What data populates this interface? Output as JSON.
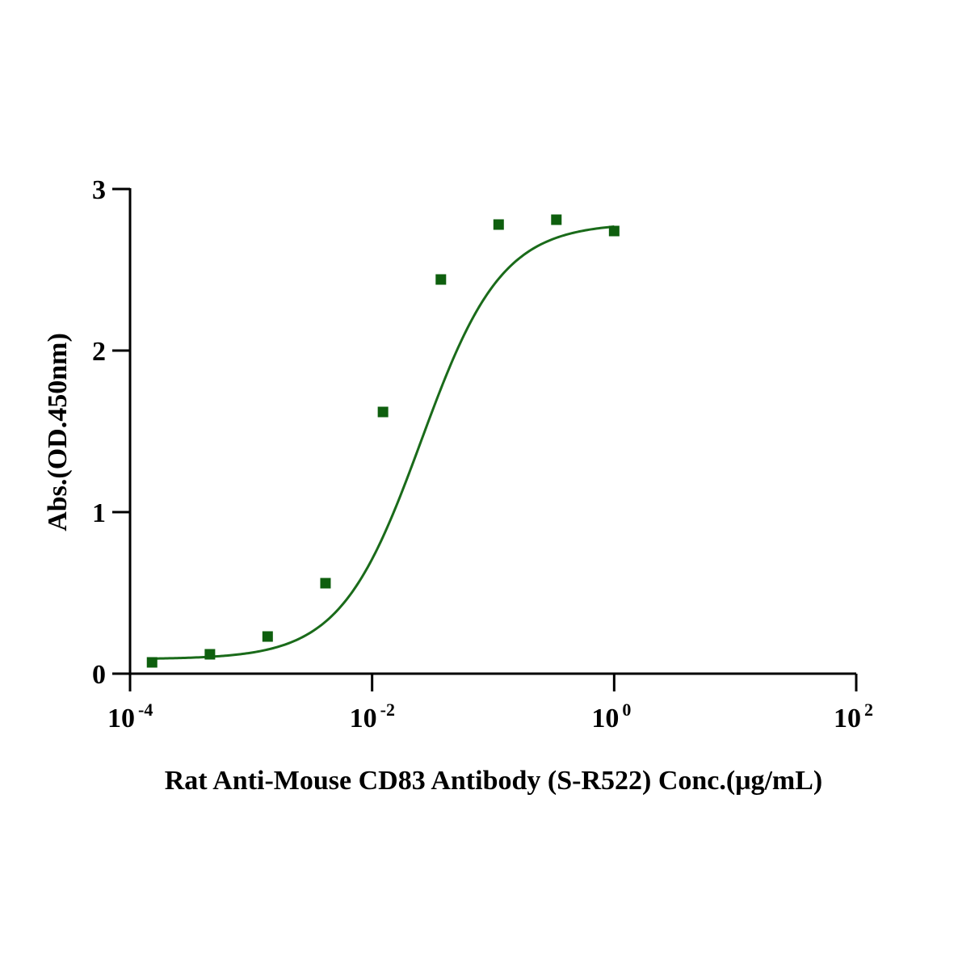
{
  "chart_data": {
    "type": "scatter",
    "title": "",
    "xlabel": "Rat Anti-Mouse CD83 Antibody (S-R522) Conc.(μg/mL)",
    "ylabel": "Abs.(OD.450nm)",
    "x_scale": "log10",
    "xlim": [
      0.0001,
      100
    ],
    "ylim": [
      0,
      3
    ],
    "x_ticks": [
      {
        "base": "10",
        "exp": "-4"
      },
      {
        "base": "10",
        "exp": "-2"
      },
      {
        "base": "10",
        "exp": "0"
      },
      {
        "base": "10",
        "exp": "2"
      }
    ],
    "y_ticks": [
      "0",
      "1",
      "2",
      "3"
    ],
    "grid": false,
    "legend": "none",
    "color": "#1a6b1a",
    "marker_color": "#0e5f0e",
    "points": [
      {
        "x": 0.000152,
        "y": 0.07
      },
      {
        "x": 0.000457,
        "y": 0.12
      },
      {
        "x": 0.00137,
        "y": 0.23
      },
      {
        "x": 0.00412,
        "y": 0.56
      },
      {
        "x": 0.0123,
        "y": 1.62
      },
      {
        "x": 0.037,
        "y": 2.44
      },
      {
        "x": 0.111,
        "y": 2.78
      },
      {
        "x": 0.333,
        "y": 2.81
      },
      {
        "x": 1.0,
        "y": 2.74
      }
    ],
    "fit_curve": {
      "model": "4PL",
      "bottom": 0.09,
      "top": 2.79,
      "ec50": 0.0254,
      "hill": 1.3
    }
  }
}
